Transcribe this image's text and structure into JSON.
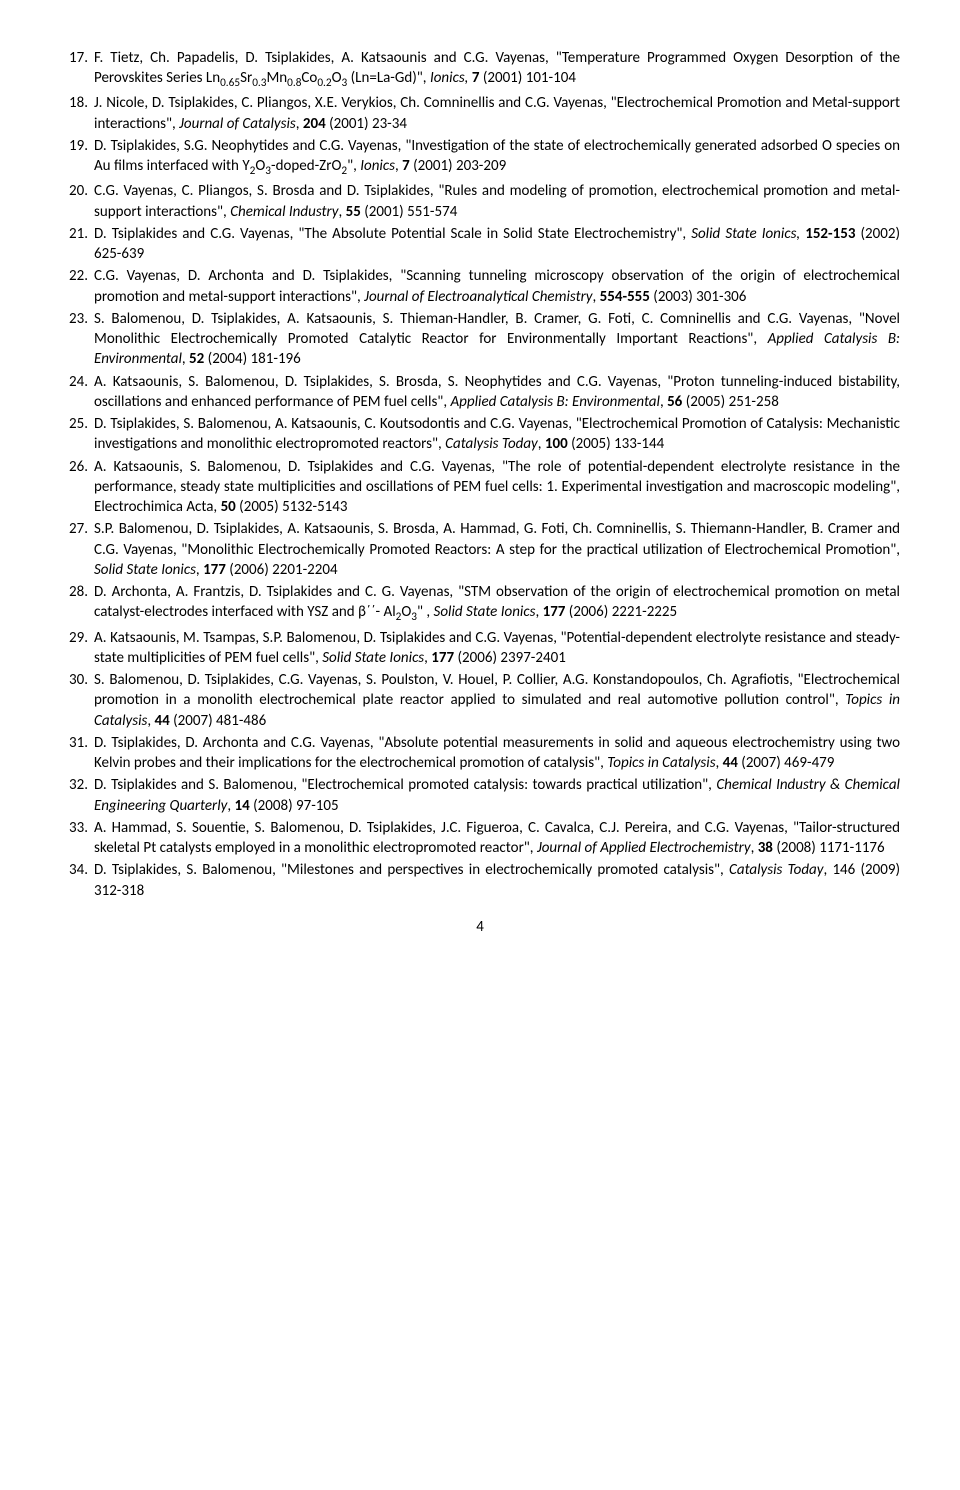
{
  "pageNumber": "4",
  "references": [
    {
      "num": "17.",
      "html": "F. Tietz, Ch. Papadelis, D. Tsiplakides, A. Katsaounis and C.G. Vayenas, \"Temperature Programmed Oxygen Desorption of the Perovskites Series Ln<span class='sub'>0.65</span>Sr<span class='sub'>0.3</span>Mn<span class='sub'>0.8</span>Co<span class='sub'>0.2</span>O<span class='sub'>3</span> (Ln=La-Gd)\", <em>Ionics,</em> <strong>7</strong> (2001) 101-104"
    },
    {
      "num": "18.",
      "html": "J. Nicole, D. Tsiplakides, C. Pliangos, X.E. Verykios, Ch. Comninellis and C.G. Vayenas, \"Electrochemical Promotion and Metal-support interactions\", <em>Journal of Catalysis</em>, <strong>204</strong> (2001) 23-34"
    },
    {
      "num": "19.",
      "html": "D. Tsiplakides, S.G. Neophytides and C.G. Vayenas, \"Investigation of the state of electrochemically generated adsorbed O species on Au films interfaced with Y<span class='sub'>2</span>O<span class='sub'>3</span>-doped-ZrO<span class='sub'>2</span>\", <em>Ionics</em>, <strong>7</strong> (2001) 203-209"
    },
    {
      "num": "20.",
      "html": "C.G. Vayenas, C. Pliangos, S. Brosda and D. Tsiplakides, \"Rules and modeling of promotion, electrochemical promotion and metal-support interactions\", <em>Chemical Industry</em>, <strong>55</strong> (2001) 551-574"
    },
    {
      "num": "21.",
      "html": "D. Tsiplakides and C.G. Vayenas, \"The Absolute Potential Scale in Solid State Electrochemistry\", <em>Solid State Ionics,</em> <strong>152-153</strong> (2002) 625-639"
    },
    {
      "num": "22.",
      "html": "C.G. Vayenas, D. Archonta and D. Tsiplakides, \"Scanning tunneling microscopy observation of the origin of electrochemical promotion and metal-support interactions\", <em>Journal of Electroanalytical Chemistry</em>, <strong>554-555</strong> (2003) 301-306"
    },
    {
      "num": "23.",
      "html": "S. Balomenou, D. Tsiplakides, A. Katsaounis, S. Thieman-Handler, B. Cramer, G. Foti, C. Comninellis and C.G. Vayenas, \"Novel Monolithic Electrochemically Promoted Catalytic Reactor for Environmentally Important Reactions\", <em>Applied Catalysis B: Environmental</em>, <strong>52</strong> (2004) 181-196"
    },
    {
      "num": "24.",
      "html": "A. Katsaounis, S. Balomenou, D. Tsiplakides, S. Brosda, S. Neophytides and C.G. Vayenas, \"Proton tunneling-induced bistability, oscillations and enhanced performance of PEM fuel cells\", <em>Applied Catalysis B: Environmental</em>, <strong>56</strong> (2005) 251-258"
    },
    {
      "num": "25.",
      "html": "D. Tsiplakides, S. Balomenou, A. Katsaounis, C. Koutsodontis and C.G. Vayenas, \"Electrochemical Promotion of Catalysis: Mechanistic investigations and monolithic electropromoted reactors\", <em>Catalysis Today</em>, <strong>100</strong> (2005) 133-144"
    },
    {
      "num": "26.",
      "html": "A. Katsaounis, S. Balomenou, D. Tsiplakides and C.G. Vayenas, \"The role of potential-dependent electrolyte resistance in the performance, steady state multiplicities and oscillations of PEM fuel cells: 1. Experimental investigation and macroscopic modeling\", Electrochimica Acta, <strong>50</strong> (2005) 5132-5143"
    },
    {
      "num": "27.",
      "html": "S.P. Balomenou, D. Tsiplakides, A. Katsaounis, S. Brosda, A. Hammad, G. Foti, Ch. Comninellis, S. Thiemann-Handler, B. Cramer and C.G. Vayenas, \"Monolithic Electrochemically Promoted Reactors: A step for the practical utilization of Electrochemical Promotion\", <em>Solid State Ionics</em>, <strong>177</strong> (2006) 2201-2204"
    },
    {
      "num": "28.",
      "html": "D. Archonta, A. Frantzis, D. Tsiplakides and C. G. Vayenas, \"STM observation of the origin of electrochemical promotion on metal catalyst-electrodes interfaced with YSZ and β΄΄- Al<span class='sub'>2</span>O<span class='sub'>3</span>\" , <em>Solid State Ionics</em>, <strong>177</strong> (2006) 2221-2225"
    },
    {
      "num": "29.",
      "html": "A. Katsaounis, M. Tsampas, S.P. Balomenou, D. Tsiplakides and C.G. Vayenas, \"Potential-dependent electrolyte resistance and steady-state multiplicities of PEM fuel cells\", <em>Solid State Ionics</em>, <strong>177</strong> (2006) 2397-2401"
    },
    {
      "num": "30.",
      "html": "S. Balomenou, D. Tsiplakides, C.G. Vayenas, S. Poulston, V. Houel, P. Collier, A.G. Konstandopoulos, Ch. Agrafiotis, \"Electrochemical promotion in a monolith electrochemical plate reactor applied to simulated and real automotive pollution control\", <em>Topics in Catalysis</em>, <strong>44</strong> (2007) 481-486"
    },
    {
      "num": "31.",
      "html": "D. Tsiplakides, D. Archonta and C.G. Vayenas, \"Absolute potential measurements in solid and aqueous electrochemistry using two Kelvin probes and their implications for the electrochemical promotion of catalysis\", <em>Topics in Catalysis</em>, <strong>44</strong> (2007) 469-479"
    },
    {
      "num": "32.",
      "html": "D. Tsiplakides and S. Balomenou, \"Electrochemical promoted catalysis: towards practical utilization\", <em>Chemical Industry &amp; Chemical Engineering Quarterly</em>, <strong>14</strong> (2008) 97-105"
    },
    {
      "num": "33.",
      "html": "A. Hammad, S. Souentie, S. Balomenou, D. Tsiplakides, J.C. Figueroa, C. Cavalca, C.J. Pereira, and C.G. Vayenas, \"Tailor-structured skeletal Pt catalysts employed in a monolithic electropromoted reactor\", <em>Journal of Applied Electrochemistry</em>, <strong>38</strong> (2008) 1171-1176"
    },
    {
      "num": "34.",
      "html": "D. Tsiplakides, S. Balomenou, \"Milestones and perspectives in electrochemically promoted catalysis\", <em>Catalysis Today</em>, 146 (2009) 312-318"
    }
  ]
}
